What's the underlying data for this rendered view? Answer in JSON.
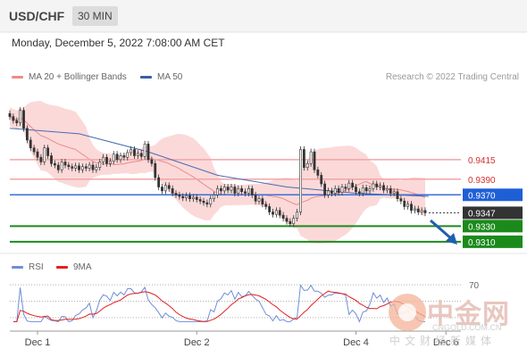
{
  "header": {
    "pair": "USD/CHF",
    "timeframe": "30 MIN"
  },
  "datetime": "Monday, December 5, 2022 7:08:00 AM CET",
  "legend": [
    {
      "label": "MA 20 + Bollinger Bands",
      "color": "#f08a8a"
    },
    {
      "label": "MA 50",
      "color": "#3a5ea8"
    }
  ],
  "copyright": "Research © 2022 Trading Central",
  "rsi_legend": [
    {
      "label": "RSI",
      "color": "#6f8ed8"
    },
    {
      "label": "9MA",
      "color": "#e02020"
    }
  ],
  "watermark": {
    "cn": "中金网",
    "url": "CNGOLD.COM.CN",
    "sub": "中文财经新媒体"
  },
  "chart_data": {
    "type": "candlestick",
    "ylim": [
      0.9295,
      0.9505
    ],
    "x_ticks": [
      {
        "label": "Dec 1",
        "index": 8
      },
      {
        "label": "Dec 2",
        "index": 54
      },
      {
        "label": "Dec 4",
        "index": 100
      },
      {
        "label": "Dec 6",
        "index": 126
      }
    ],
    "levels": [
      {
        "label": "0.9415",
        "value": 0.9415,
        "kind": "resistance"
      },
      {
        "label": "0.9390",
        "value": 0.939,
        "kind": "resistance"
      },
      {
        "label": "0.9370",
        "value": 0.937,
        "kind": "pivot"
      },
      {
        "label": "0.9347",
        "value": 0.9347,
        "kind": "last"
      },
      {
        "label": "0.9330",
        "value": 0.933,
        "kind": "support"
      },
      {
        "label": "0.9310",
        "value": 0.931,
        "kind": "support"
      }
    ],
    "closes": [
      0.947,
      0.9465,
      0.9462,
      0.9478,
      0.9455,
      0.944,
      0.943,
      0.9425,
      0.9418,
      0.9412,
      0.943,
      0.942,
      0.941,
      0.9408,
      0.9402,
      0.9412,
      0.9408,
      0.9406,
      0.9404,
      0.9407,
      0.9402,
      0.9406,
      0.9404,
      0.9408,
      0.9402,
      0.9405,
      0.9412,
      0.9418,
      0.941,
      0.9413,
      0.9422,
      0.9415,
      0.942,
      0.9418,
      0.9424,
      0.9428,
      0.942,
      0.9423,
      0.9419,
      0.9435,
      0.9415,
      0.941,
      0.9392,
      0.938,
      0.9375,
      0.9382,
      0.9378,
      0.9372,
      0.937,
      0.9368,
      0.9366,
      0.9369,
      0.9365,
      0.9367,
      0.9364,
      0.9362,
      0.936,
      0.9358,
      0.9365,
      0.937,
      0.9378,
      0.9375,
      0.938,
      0.9376,
      0.938,
      0.9372,
      0.9378,
      0.9374,
      0.9372,
      0.9378,
      0.937,
      0.9362,
      0.9365,
      0.9358,
      0.9355,
      0.9348,
      0.9345,
      0.935,
      0.9344,
      0.934,
      0.9336,
      0.9333,
      0.934,
      0.9348,
      0.9428,
      0.9405,
      0.941,
      0.9425,
      0.9402,
      0.9395,
      0.9384,
      0.937,
      0.9375,
      0.9372,
      0.9378,
      0.9373,
      0.938,
      0.9378,
      0.9385,
      0.938,
      0.9374,
      0.9372,
      0.9379,
      0.9375,
      0.9378,
      0.9384,
      0.938,
      0.9382,
      0.9376,
      0.9378,
      0.9372,
      0.9374,
      0.9365,
      0.9362,
      0.9355,
      0.9358,
      0.935,
      0.9352,
      0.9348,
      0.935,
      0.9347
    ],
    "ma50": [
      {
        "index": 0,
        "value": 0.9455
      },
      {
        "index": 20,
        "value": 0.9448
      },
      {
        "index": 40,
        "value": 0.9425
      },
      {
        "index": 60,
        "value": 0.9395
      },
      {
        "index": 80,
        "value": 0.938
      },
      {
        "index": 100,
        "value": 0.9372
      },
      {
        "index": 121,
        "value": 0.9368
      }
    ],
    "rsi": {
      "label": "70",
      "level": 70,
      "ylim": [
        20,
        80
      ]
    }
  }
}
